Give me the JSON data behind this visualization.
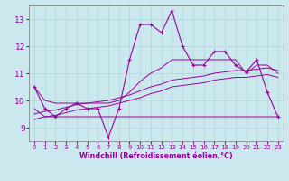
{
  "xlabel": "Windchill (Refroidissement éolien,°C)",
  "background_color": "#cbe8ef",
  "line_color": "#990099",
  "xlim": [
    -0.5,
    23.5
  ],
  "ylim": [
    8.5,
    13.5
  ],
  "yticks": [
    9,
    10,
    11,
    12,
    13
  ],
  "xticks": [
    0,
    1,
    2,
    3,
    4,
    5,
    6,
    7,
    8,
    9,
    10,
    11,
    12,
    13,
    14,
    15,
    16,
    17,
    18,
    19,
    20,
    21,
    22,
    23
  ],
  "hours": [
    0,
    1,
    2,
    3,
    4,
    5,
    6,
    7,
    8,
    9,
    10,
    11,
    12,
    13,
    14,
    15,
    16,
    17,
    18,
    19,
    20,
    21,
    22,
    23
  ],
  "temp": [
    10.5,
    9.7,
    9.4,
    9.7,
    9.9,
    9.7,
    9.7,
    8.65,
    9.7,
    11.5,
    12.8,
    12.8,
    12.5,
    13.3,
    12.0,
    11.3,
    11.3,
    11.8,
    11.8,
    11.3,
    11.05,
    11.5,
    10.3,
    9.4
  ],
  "min_line": [
    9.7,
    9.4,
    9.4,
    9.4,
    9.4,
    9.4,
    9.4,
    9.4,
    9.4,
    9.4,
    9.4,
    9.4,
    9.4,
    9.4,
    9.4,
    9.4,
    9.4,
    9.4,
    9.4,
    9.4,
    9.4,
    9.4,
    9.4,
    9.4
  ],
  "max_line": [
    10.5,
    10.0,
    9.9,
    9.9,
    9.9,
    9.9,
    9.9,
    9.9,
    10.0,
    10.3,
    10.7,
    11.0,
    11.2,
    11.5,
    11.5,
    11.5,
    11.5,
    11.5,
    11.5,
    11.5,
    11.0,
    11.3,
    11.3,
    11.0
  ],
  "trend1": [
    9.5,
    9.6,
    9.65,
    9.75,
    9.85,
    9.9,
    9.95,
    10.0,
    10.1,
    10.2,
    10.35,
    10.5,
    10.6,
    10.75,
    10.8,
    10.85,
    10.9,
    11.0,
    11.05,
    11.1,
    11.1,
    11.15,
    11.2,
    11.1
  ],
  "trend2": [
    9.3,
    9.4,
    9.45,
    9.55,
    9.65,
    9.7,
    9.75,
    9.8,
    9.9,
    10.0,
    10.1,
    10.25,
    10.35,
    10.5,
    10.55,
    10.6,
    10.65,
    10.75,
    10.8,
    10.85,
    10.85,
    10.9,
    10.95,
    10.85
  ]
}
